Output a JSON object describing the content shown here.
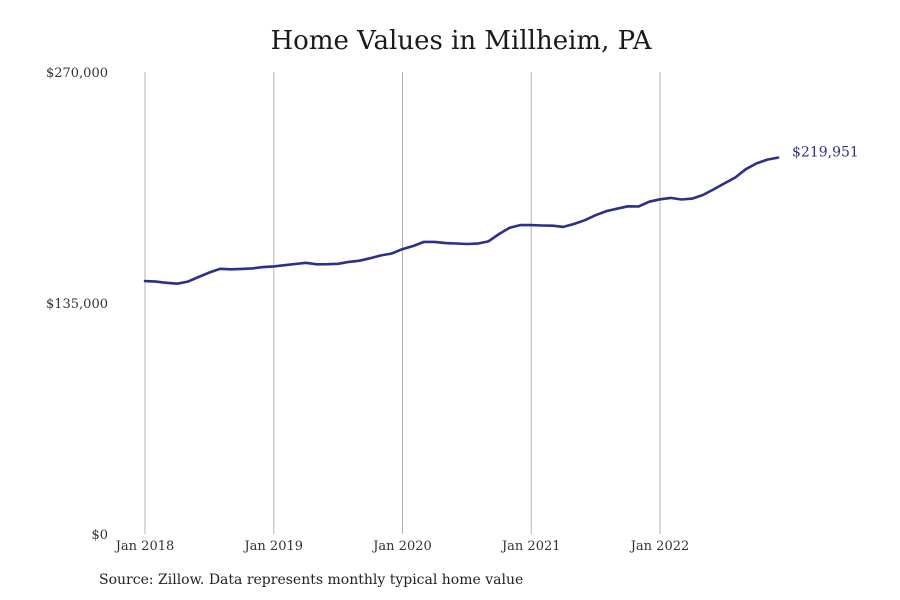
{
  "chart_data": {
    "type": "line",
    "title": "Home Values in Millheim, PA",
    "xlabel": "",
    "ylabel": "",
    "x_ticks": [
      "Jan 2018",
      "Jan 2019",
      "Jan 2020",
      "Jan 2021",
      "Jan 2022"
    ],
    "x_range": [
      "2018-01",
      "2022-12"
    ],
    "y_ticks": [
      "$0",
      "$135,000",
      "$270,000"
    ],
    "y_tick_values": [
      0,
      135000,
      270000
    ],
    "ylim": [
      0,
      270000
    ],
    "grid": "vertical lines at each x tick",
    "legend": "none",
    "end_label": "$219,951",
    "series": [
      {
        "color": "#2e2e8c",
        "x": [
          "2018-01",
          "2018-02",
          "2018-03",
          "2018-04",
          "2018-05",
          "2018-06",
          "2018-07",
          "2018-08",
          "2018-09",
          "2018-10",
          "2018-11",
          "2018-12",
          "2019-01",
          "2019-02",
          "2019-03",
          "2019-04",
          "2019-05",
          "2019-06",
          "2019-07",
          "2019-08",
          "2019-09",
          "2019-10",
          "2019-11",
          "2019-12",
          "2020-01",
          "2020-02",
          "2020-03",
          "2020-04",
          "2020-05",
          "2020-06",
          "2020-07",
          "2020-08",
          "2020-09",
          "2020-10",
          "2020-11",
          "2020-12",
          "2021-01",
          "2021-02",
          "2021-03",
          "2021-04",
          "2021-05",
          "2021-06",
          "2021-07",
          "2021-08",
          "2021-09",
          "2021-10",
          "2021-11",
          "2021-12",
          "2022-01",
          "2022-02",
          "2022-03",
          "2022-04",
          "2022-05",
          "2022-06",
          "2022-07",
          "2022-08",
          "2022-09",
          "2022-10",
          "2022-11",
          "2022-12"
        ],
        "values": [
          147800,
          147500,
          146800,
          146300,
          147500,
          150200,
          152800,
          155000,
          154700,
          154900,
          155200,
          156000,
          156400,
          157100,
          157800,
          158500,
          157600,
          157700,
          157900,
          159000,
          159700,
          161200,
          162800,
          163900,
          166500,
          168300,
          170700,
          170700,
          170000,
          169800,
          169500,
          169700,
          171000,
          175300,
          179000,
          180600,
          180500,
          180300,
          180200,
          179500,
          181200,
          183400,
          186300,
          188700,
          190100,
          191500,
          191400,
          194200,
          195600,
          196400,
          195500,
          196000,
          198100,
          201400,
          204900,
          208300,
          213200,
          216600,
          218800,
          219951
        ]
      }
    ]
  },
  "footer": {
    "source": "Source: Zillow. Data represents monthly typical home value"
  }
}
